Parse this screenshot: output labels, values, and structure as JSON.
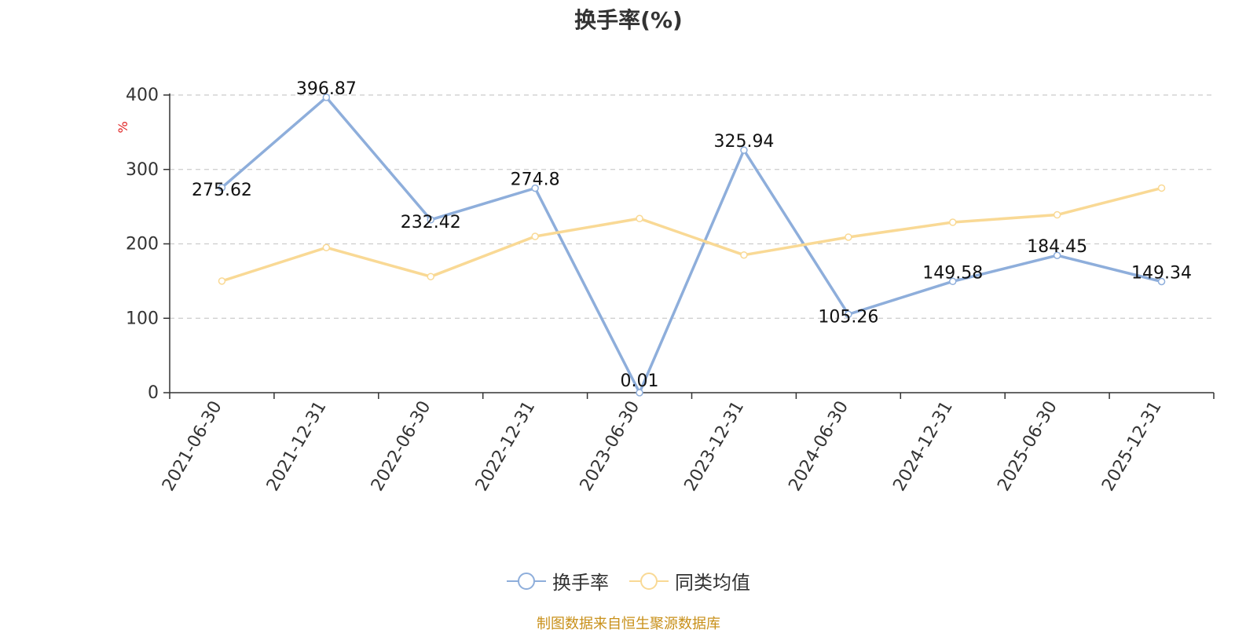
{
  "chart_data": {
    "type": "line",
    "title": "换手率(%)",
    "ylabel": "%",
    "categories": [
      "2021-06-30",
      "2021-12-31",
      "2022-06-30",
      "2022-12-31",
      "2023-06-30",
      "2023-12-31",
      "2024-06-30",
      "2024-12-31",
      "2025-06-30",
      "2025-12-31"
    ],
    "ylim": [
      0,
      400
    ],
    "yticks": [
      0,
      100,
      200,
      300,
      400
    ],
    "grid": true,
    "legend_position": "bottom",
    "series": [
      {
        "name": "换手率",
        "color": "#8eaedb",
        "values": [
          275.62,
          396.87,
          232.42,
          274.8,
          0.01,
          325.94,
          105.26,
          149.58,
          184.45,
          149.34
        ],
        "labels": [
          "275.62",
          "396.87",
          "232.42",
          "274.8",
          "0.01",
          "325.94",
          "105.26",
          "149.58",
          "184.45",
          "149.34"
        ]
      },
      {
        "name": "同类均值",
        "color": "#f9d995",
        "values": [
          150,
          195,
          156,
          210,
          234,
          185,
          209,
          229,
          239,
          275
        ]
      }
    ]
  },
  "source": "制图数据来自恒生聚源数据库"
}
